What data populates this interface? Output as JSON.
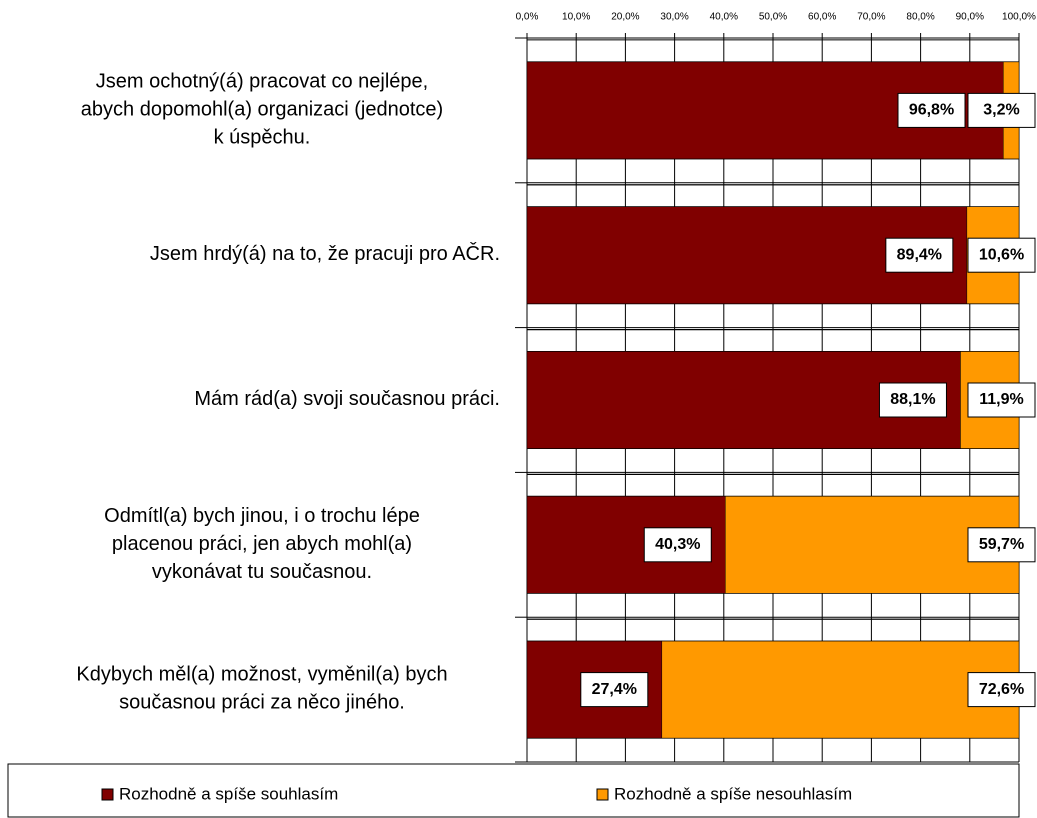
{
  "chart_data": {
    "type": "stacked_bar_horizontal",
    "categories": [
      "Jsem ochotný(á) pracovat co nejlépe,\nabych dopomohl(a) organizaci (jednotce)\nk úspěchu.",
      "Jsem hrdý(á) na to, že pracuji pro AČR.",
      "Mám rád(a) svoji současnou práci.",
      "Odmítl(a) bych jinou, i o trochu lépe\nplacenou práci, jen abych mohl(a)\nvykonávat tu současnou.",
      "Kdybych měl(a) možnost, vyměnil(a) bych\nsoučasnou práci za něco jiného."
    ],
    "series": [
      {
        "name": "Rozhodně a spíše souhlasím",
        "color": "#800000",
        "values": [
          96.8,
          89.4,
          88.1,
          40.3,
          27.4
        ],
        "value_labels": [
          "96,8%",
          "89,4%",
          "88,1%",
          "40,3%",
          "27,4%"
        ]
      },
      {
        "name": "Rozhodně a spíše nesouhlasím",
        "color": "#FF9900",
        "values": [
          3.2,
          10.6,
          11.9,
          59.7,
          72.6
        ],
        "value_labels": [
          "3,2%",
          "10,6%",
          "11,9%",
          "59,7%",
          "72,6%"
        ]
      }
    ],
    "xlim": [
      0,
      100
    ],
    "xticks": [
      {
        "value": 0,
        "label": "0,0%"
      },
      {
        "value": 10,
        "label": "10,0%"
      },
      {
        "value": 20,
        "label": "20,0%"
      },
      {
        "value": 30,
        "label": "30,0%"
      },
      {
        "value": 40,
        "label": "40,0%"
      },
      {
        "value": 50,
        "label": "50,0%"
      },
      {
        "value": 60,
        "label": "60,0%"
      },
      {
        "value": 70,
        "label": "70,0%"
      },
      {
        "value": 80,
        "label": "80,0%"
      },
      {
        "value": 90,
        "label": "90,0%"
      },
      {
        "value": 100,
        "label": "100,0%"
      }
    ],
    "grid": true,
    "legend": "bottom"
  }
}
